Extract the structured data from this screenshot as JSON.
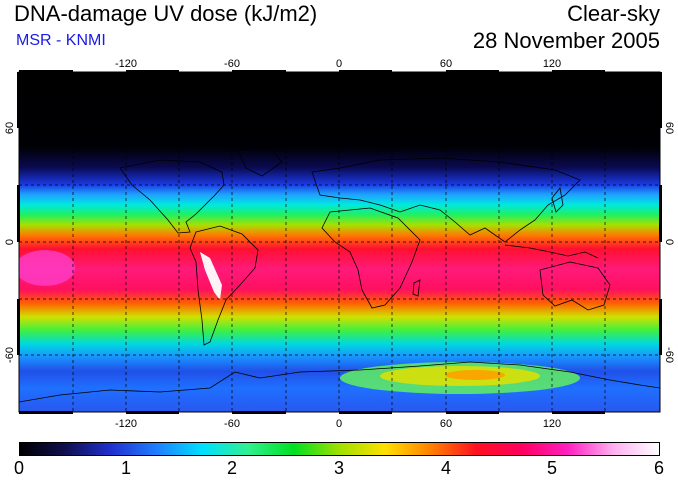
{
  "header": {
    "title": "DNA-damage UV dose (kJ/m2)",
    "subtitle": "MSR - KNMI",
    "condition": "Clear-sky",
    "date": "28 November 2005"
  },
  "map": {
    "lon_ticks": [
      "-120",
      "-60",
      "0",
      "60",
      "120"
    ],
    "lat_ticks": [
      "60",
      "0",
      "-60"
    ],
    "lon_range": [
      -180,
      180
    ],
    "lat_range": [
      -90,
      90
    ]
  },
  "colorbar": {
    "labels": [
      "0",
      "1",
      "2",
      "3",
      "4",
      "5",
      "6"
    ],
    "colors": [
      "#000000",
      "#101050",
      "#2030d0",
      "#1f7fff",
      "#00e0ff",
      "#30f090",
      "#00e020",
      "#a0e000",
      "#ffe000",
      "#ff8000",
      "#ff1020",
      "#ff0060",
      "#ff20c0",
      "#ffb0f0",
      "#ffffff"
    ]
  }
}
